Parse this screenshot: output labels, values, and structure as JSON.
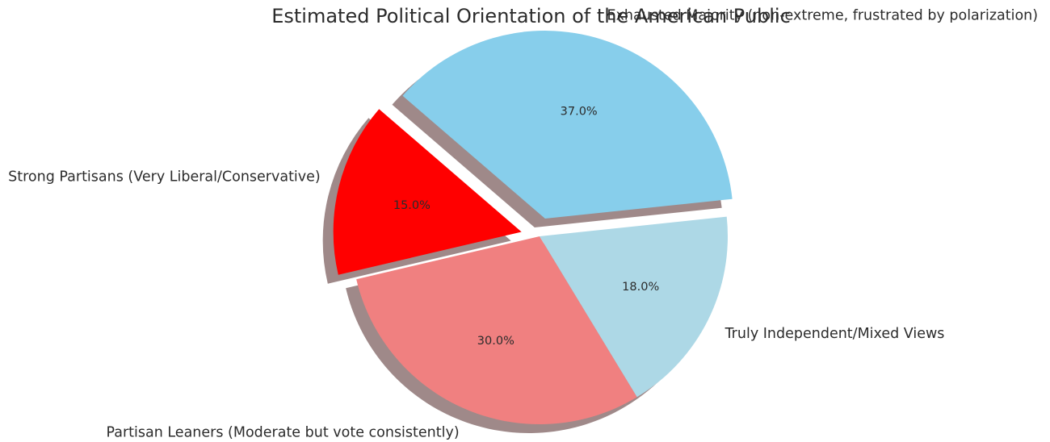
{
  "chart_data": {
    "type": "pie",
    "title": "Estimated Political Orientation of the American Public",
    "slices": [
      {
        "label": "Exhausted Majority (non-extreme, frustrated by polarization)",
        "value": 37.0,
        "pct_label": "37.0%",
        "color": "#87ceeb",
        "exploded": true
      },
      {
        "label": "Strong Partisans (Very Liberal/Conservative)",
        "value": 15.0,
        "pct_label": "15.0%",
        "color": "#ff0000",
        "exploded": true
      },
      {
        "label": "Partisan Leaners (Moderate but vote consistently)",
        "value": 30.0,
        "pct_label": "30.0%",
        "color": "#f08080",
        "exploded": false
      },
      {
        "label": "Truly Independent/Mixed Views",
        "value": 18.0,
        "pct_label": "18.0%",
        "color": "#add8e6",
        "exploded": false
      }
    ],
    "start_angle_deg": 6.0,
    "direction": "counterclockwise",
    "shadow": true
  }
}
